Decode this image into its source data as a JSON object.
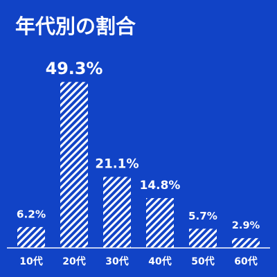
{
  "chart_data": {
    "type": "bar",
    "title": "年代別の割合",
    "categories": [
      "10代",
      "20代",
      "30代",
      "40代",
      "50代",
      "60代"
    ],
    "values": [
      6.2,
      49.3,
      21.1,
      14.8,
      5.7,
      2.9
    ],
    "value_labels": [
      "6.2%",
      "49.3%",
      "21.1%",
      "14.8%",
      "5.7%",
      "2.9%"
    ],
    "color": "#ffffff",
    "background": "#1143c6",
    "ylim": [
      0,
      50
    ]
  }
}
